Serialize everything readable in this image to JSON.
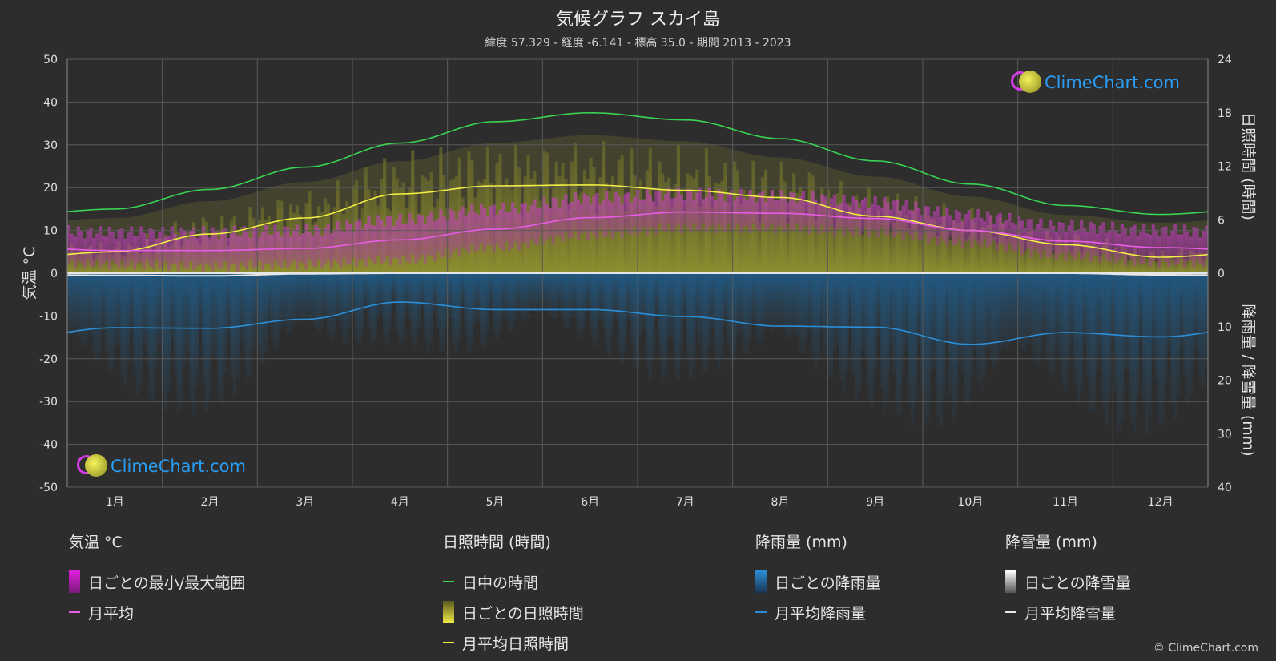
{
  "header": {
    "title": "気候グラフ スカイ島",
    "subtitle": "緯度 57.329 - 経度 -6.141 - 標高 35.0 - 期間 2013 - 2023"
  },
  "axes": {
    "left_label": "気温 °C",
    "right_top_label": "日照時間 (時間)",
    "right_bottom_label": "降雨量 / 降雪量 (mm)"
  },
  "colors": {
    "daylight": "#39d353",
    "sunshine": "#f2ee45",
    "temperature": "#e85ce6",
    "rain": "#2a8fd8",
    "snow": "#e6e6e6",
    "background": "#2d2d2d"
  },
  "chart_data": {
    "type": "line",
    "x": [
      "1月",
      "2月",
      "3月",
      "4月",
      "5月",
      "6月",
      "7月",
      "8月",
      "9月",
      "10月",
      "11月",
      "12月"
    ],
    "temp_axis": {
      "min": -50,
      "max": 50,
      "ticks": [
        "50",
        "40",
        "30",
        "20",
        "10",
        "0",
        "-10",
        "-20",
        "-30",
        "-40",
        "-50"
      ]
    },
    "sun_axis": {
      "min": 0,
      "max": 24,
      "ticks": [
        "24",
        "18",
        "12",
        "6",
        "0"
      ]
    },
    "precip_axis": {
      "min": 0,
      "max": 40,
      "ticks": [
        "0",
        "10",
        "20",
        "30",
        "40"
      ]
    },
    "series": [
      {
        "name": "日中の時間",
        "axis": "sun",
        "values": [
          7.2,
          9.4,
          11.9,
          14.6,
          17.0,
          18.0,
          17.2,
          15.1,
          12.6,
          10.0,
          7.6,
          6.6
        ]
      },
      {
        "name": "月平均日照時間",
        "axis": "sun",
        "values": [
          2.4,
          4.4,
          6.2,
          8.9,
          9.8,
          9.9,
          9.3,
          8.5,
          6.4,
          4.8,
          3.2,
          1.8
        ]
      },
      {
        "name": "月平均",
        "axis": "temp",
        "values": [
          5.3,
          5.3,
          5.8,
          7.8,
          10.3,
          13.0,
          14.3,
          14.0,
          12.8,
          10.0,
          7.5,
          6.0
        ]
      },
      {
        "name": "月平均降雨量",
        "axis": "precip",
        "values": [
          10.2,
          10.3,
          8.6,
          5.4,
          6.8,
          6.8,
          8.1,
          9.9,
          10.1,
          13.3,
          11.1,
          11.9
        ]
      },
      {
        "name": "月平均降雪量",
        "axis": "precip",
        "values": [
          0.4,
          0.5,
          0.1,
          0.0,
          0.0,
          0.0,
          0.0,
          0.0,
          0.0,
          0.0,
          0.0,
          0.3
        ]
      }
    ],
    "daily_temp_range": {
      "min": [
        2.0,
        1.5,
        2.0,
        3.0,
        6.0,
        9.0,
        10.5,
        10.5,
        9.5,
        7.0,
        4.0,
        2.5
      ],
      "max": [
        9.5,
        9.5,
        10.0,
        12.5,
        15.0,
        17.5,
        18.5,
        18.0,
        16.5,
        13.5,
        11.0,
        10.0
      ]
    }
  },
  "legend": {
    "temp": {
      "head": "気温 °C",
      "items": [
        "日ごとの最小/最大範囲",
        "月平均"
      ]
    },
    "sun": {
      "head": "日照時間 (時間)",
      "items": [
        "日中の時間",
        "日ごとの日照時間",
        "月平均日照時間"
      ]
    },
    "rain": {
      "head": "降雨量 (mm)",
      "items": [
        "日ごとの降雨量",
        "月平均降雨量"
      ]
    },
    "snow": {
      "head": "降雪量 (mm)",
      "items": [
        "日ごとの降雪量",
        "月平均降雪量"
      ]
    }
  },
  "branding": {
    "logo_text": "ClimeChart.com",
    "copyright": "© ClimeChart.com"
  }
}
